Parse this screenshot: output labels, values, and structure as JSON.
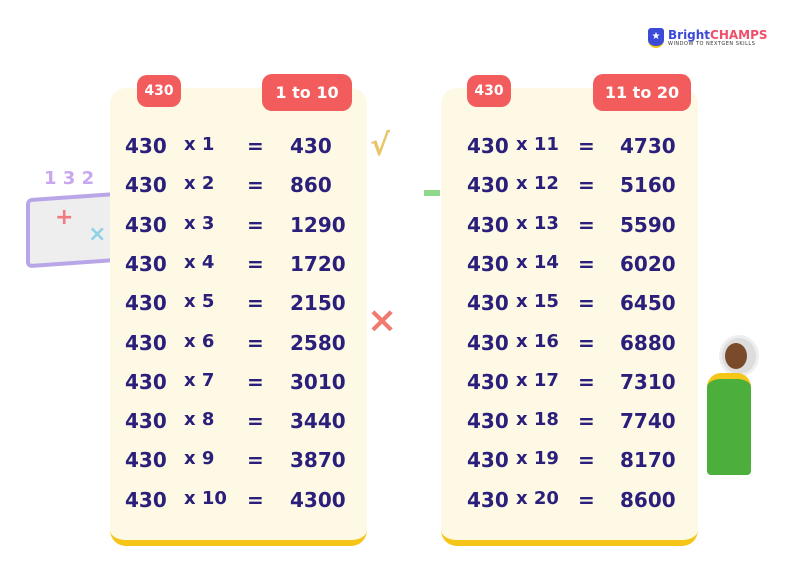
{
  "brand": {
    "name_a": "Bright",
    "name_b": "CHAMPS",
    "tagline": "WINDOW TO NEXTGEN SKILLS",
    "accent": "#3b4bd8"
  },
  "colors": {
    "text": "#2a1f7a",
    "tag": "#f25c5c",
    "card": "#fdf9e4",
    "border": "#f5c518"
  },
  "tables": [
    {
      "number_tag": "430",
      "range_tag": "1 to 10",
      "rows": [
        {
          "a": "430",
          "m": "x 1",
          "eq": "=",
          "r": "430"
        },
        {
          "a": "430",
          "m": "x 2",
          "eq": "=",
          "r": "860"
        },
        {
          "a": "430",
          "m": "x 3",
          "eq": "=",
          "r": "1290"
        },
        {
          "a": "430",
          "m": "x 4",
          "eq": "=",
          "r": "1720"
        },
        {
          "a": "430",
          "m": "x 5",
          "eq": "=",
          "r": "2150"
        },
        {
          "a": "430",
          "m": "x 6",
          "eq": "=",
          "r": "2580"
        },
        {
          "a": "430",
          "m": "x 7",
          "eq": "=",
          "r": "3010"
        },
        {
          "a": "430",
          "m": "x 8",
          "eq": "=",
          "r": "3440"
        },
        {
          "a": "430",
          "m": "x 9",
          "eq": "=",
          "r": "3870"
        },
        {
          "a": "430",
          "m": "x 10",
          "eq": "=",
          "r": "4300"
        }
      ]
    },
    {
      "number_tag": "430",
      "range_tag": "11 to 20",
      "rows": [
        {
          "a": "430",
          "m": "x 11",
          "eq": "=",
          "r": "4730"
        },
        {
          "a": "430",
          "m": "x 12",
          "eq": "=",
          "r": "5160"
        },
        {
          "a": "430",
          "m": "x 13",
          "eq": "=",
          "r": "5590"
        },
        {
          "a": "430",
          "m": "x 14",
          "eq": "=",
          "r": "6020"
        },
        {
          "a": "430",
          "m": "x 15",
          "eq": "=",
          "r": "6450"
        },
        {
          "a": "430",
          "m": "x 16",
          "eq": "=",
          "r": "6880"
        },
        {
          "a": "430",
          "m": "x 17",
          "eq": "=",
          "r": "7310"
        },
        {
          "a": "430",
          "m": "x 18",
          "eq": "=",
          "r": "7740"
        },
        {
          "a": "430",
          "m": "x 19",
          "eq": "=",
          "r": "8170"
        },
        {
          "a": "430",
          "m": "x 20",
          "eq": "=",
          "r": "8600"
        }
      ]
    }
  ]
}
